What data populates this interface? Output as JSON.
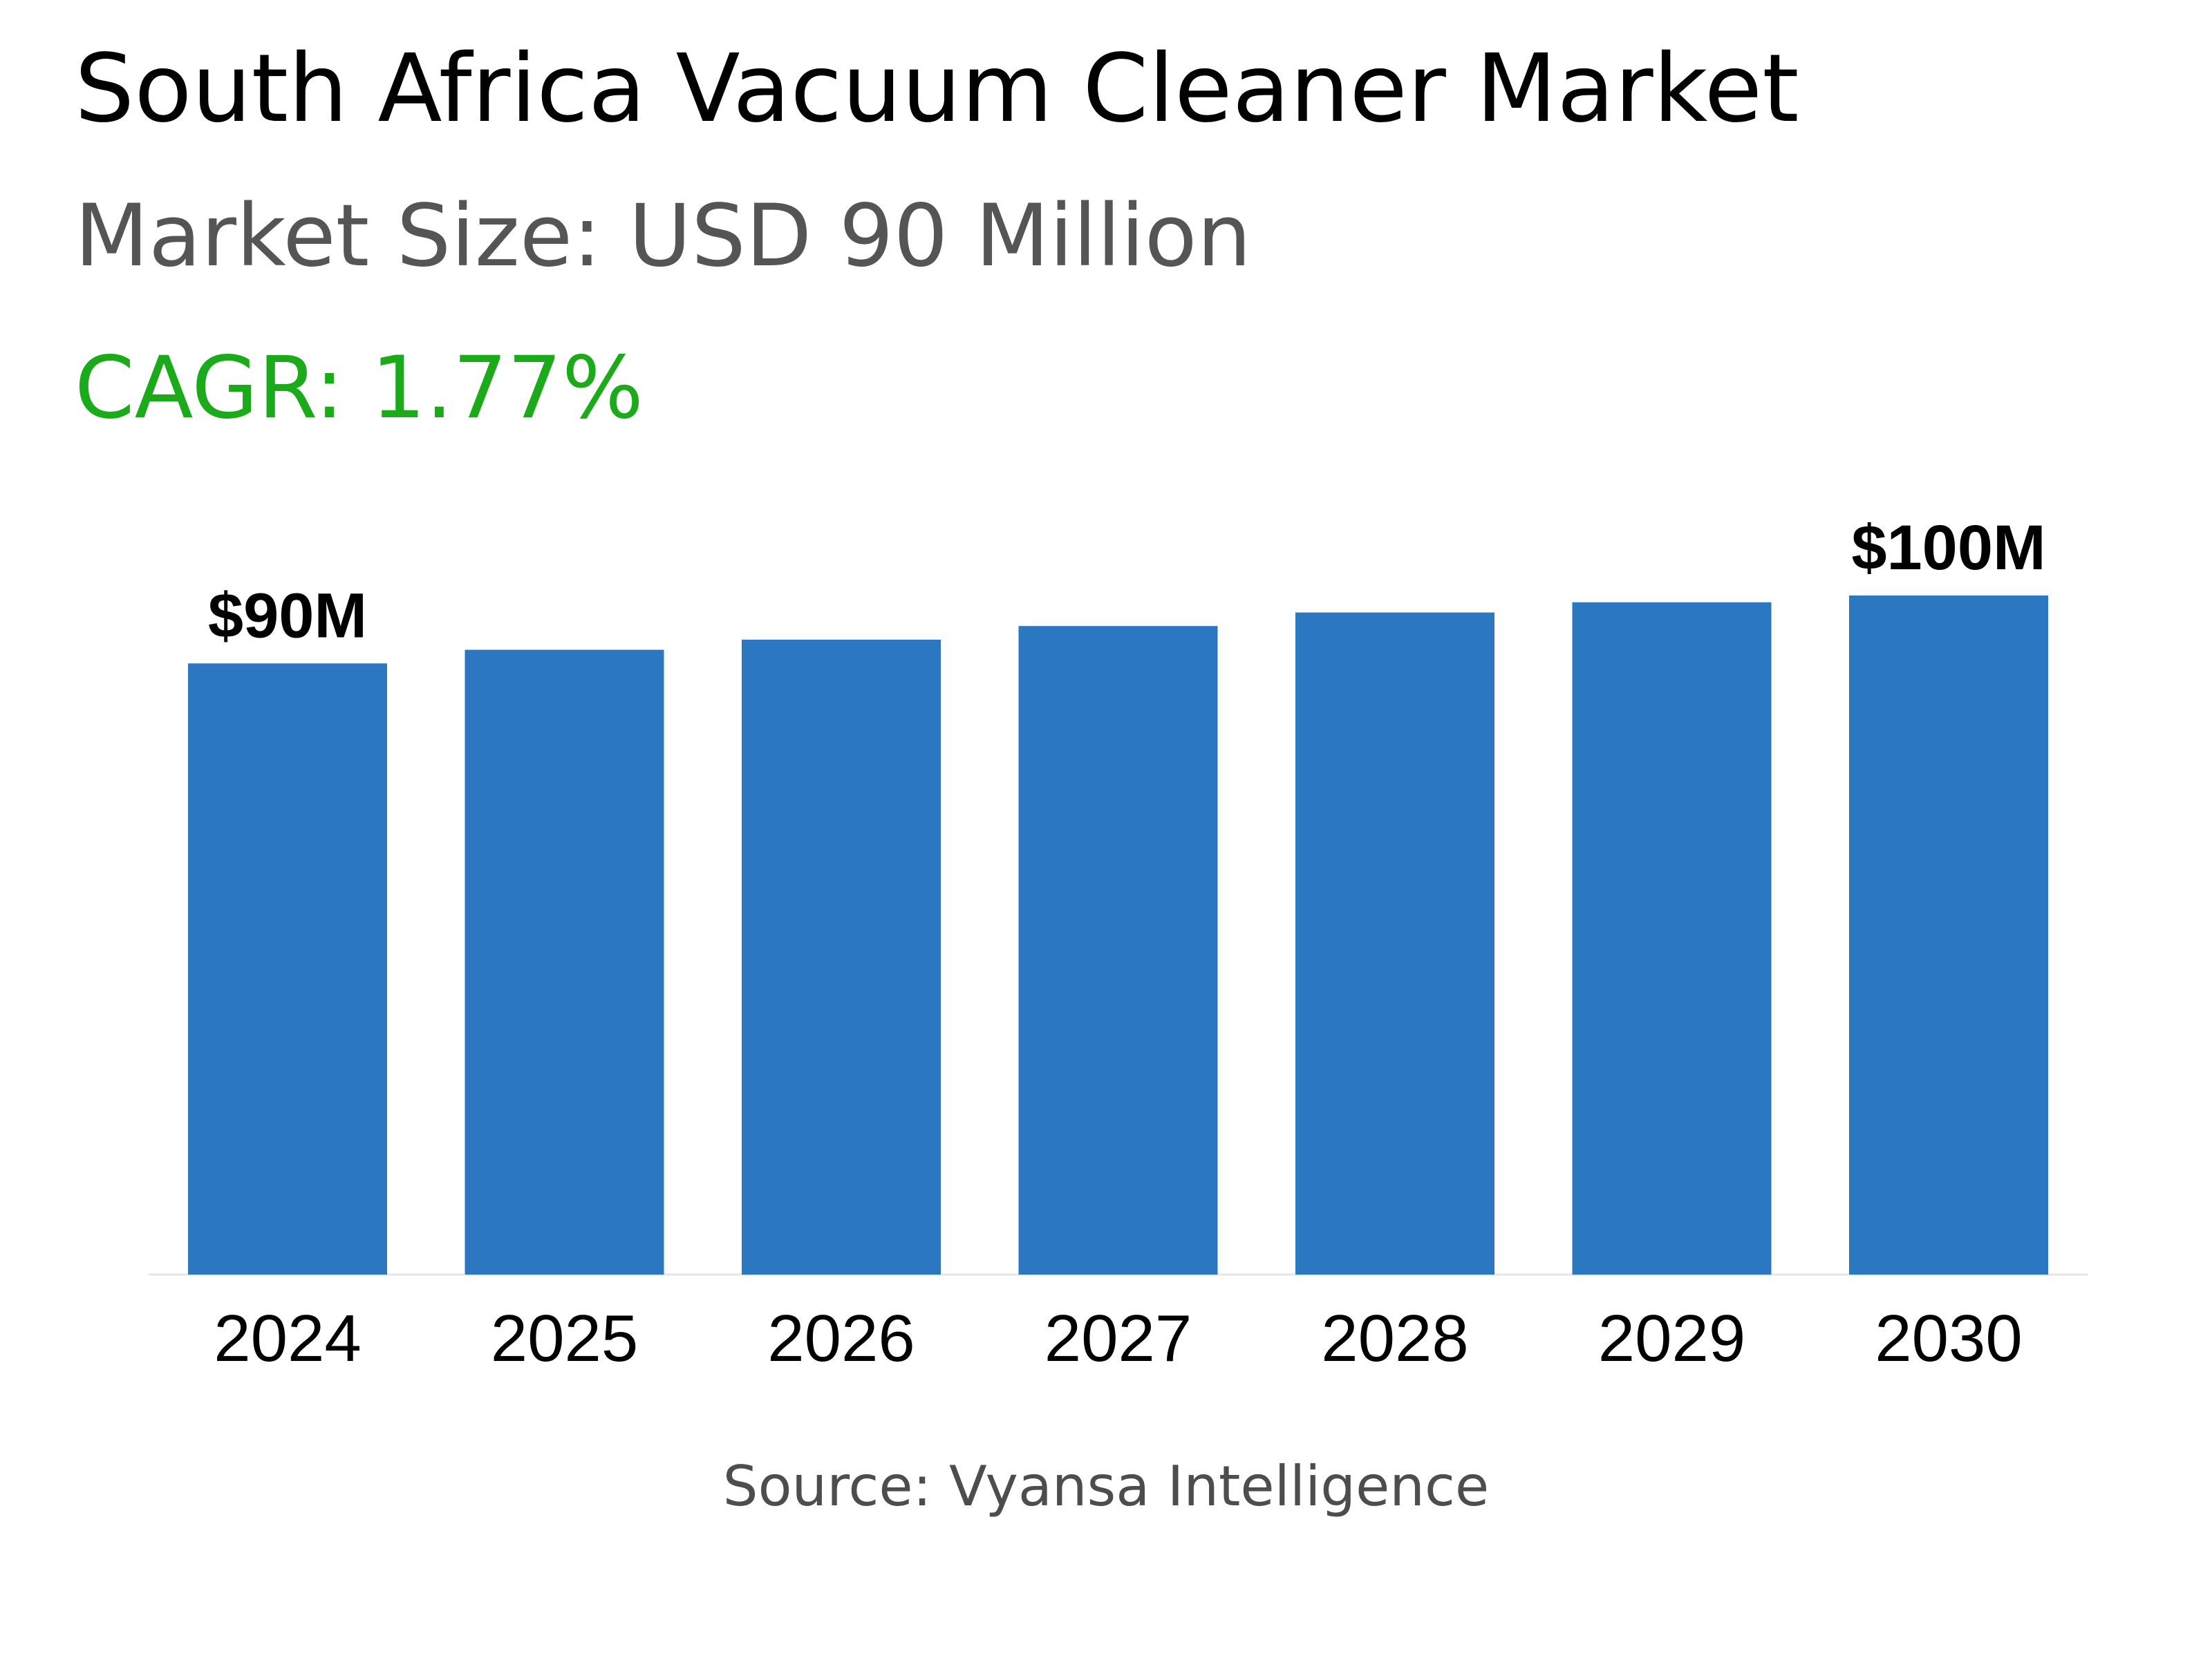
{
  "header": {
    "title": "South Africa Vacuum Cleaner Market",
    "subtitle": "Market Size: USD 90 Million",
    "cagr": "CAGR: 1.77%",
    "cagr_color": "#1aaa1a"
  },
  "footer": {
    "source": "Source: Vyansa Intelligence"
  },
  "chart_data": {
    "type": "bar",
    "title": "",
    "xlabel": "",
    "ylabel": "",
    "bar_color": "#2b78c1",
    "categories": [
      "2024",
      "2025",
      "2026",
      "2027",
      "2028",
      "2029",
      "2030"
    ],
    "values": [
      90,
      92,
      93.5,
      95.5,
      97.5,
      99,
      100
    ],
    "data_labels": [
      "$90M",
      "",
      "",
      "",
      "",
      "",
      "$100M"
    ],
    "ylim": [
      0,
      100
    ],
    "grid": false,
    "legend": "none"
  }
}
